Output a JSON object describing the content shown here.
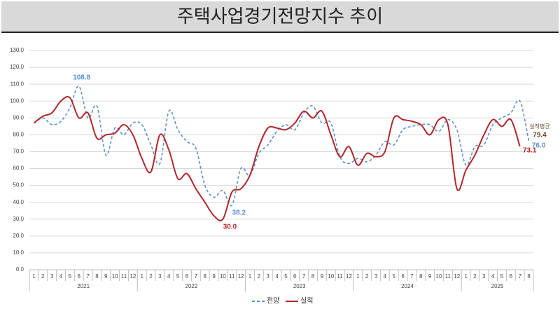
{
  "chart_data": {
    "type": "line",
    "title": "주택사업경기전망지수 추이",
    "categories": [
      "1",
      "2",
      "3",
      "4",
      "5",
      "6",
      "7",
      "8",
      "9",
      "10",
      "11",
      "12",
      "1",
      "2",
      "3",
      "4",
      "5",
      "6",
      "7",
      "8",
      "9",
      "10",
      "11",
      "12",
      "1",
      "2",
      "3",
      "4",
      "5",
      "6",
      "7",
      "8",
      "9",
      "10",
      "11",
      "12",
      "1",
      "2",
      "3",
      "4",
      "5",
      "6",
      "7",
      "8",
      "9",
      "10",
      "11",
      "12",
      "1",
      "2",
      "3",
      "4",
      "5",
      "6",
      "7",
      "8"
    ],
    "x_groups": [
      "2021",
      "2022",
      "2023",
      "2024",
      "2025"
    ],
    "series": [
      {
        "name": "전망",
        "color": "#5b8fd6",
        "dash": true,
        "values": [
          87,
          90,
          86,
          88,
          96,
          108.8,
          90,
          97,
          68,
          84,
          80,
          87,
          86,
          74,
          63,
          94,
          83,
          76,
          72,
          50,
          43,
          47,
          38.2,
          60,
          56,
          69,
          74,
          82,
          86,
          83,
          93,
          97,
          87,
          87,
          67,
          63,
          66,
          64,
          68,
          76,
          74,
          83,
          85,
          86,
          86,
          82,
          89,
          83,
          62,
          73,
          74,
          86,
          90,
          93,
          100,
          76
        ],
        "value_labels": [
          null,
          null,
          null,
          null,
          null,
          "108.8",
          null,
          null,
          null,
          null,
          null,
          null,
          null,
          null,
          null,
          null,
          null,
          null,
          null,
          null,
          null,
          null,
          "38.2",
          null,
          null,
          null,
          null,
          null,
          null,
          null,
          null,
          null,
          null,
          null,
          null,
          null,
          null,
          null,
          null,
          null,
          null,
          null,
          null,
          null,
          null,
          null,
          null,
          null,
          null,
          null,
          null,
          null,
          null,
          null,
          null,
          "76.0"
        ]
      },
      {
        "name": "실적",
        "color": "#b3262b",
        "dash": false,
        "values": [
          87,
          91,
          93,
          100,
          102,
          90,
          93,
          78,
          80,
          81,
          86,
          80,
          66,
          58,
          80,
          71,
          54,
          57,
          48,
          40,
          32,
          30,
          46,
          48,
          56,
          73,
          84,
          84,
          83,
          87,
          94,
          90,
          94,
          80,
          67,
          73,
          62,
          69,
          67,
          70,
          90,
          89,
          88,
          86,
          80,
          89,
          86,
          48,
          59,
          68,
          80,
          89,
          85,
          89,
          73.1,
          null
        ],
        "value_labels": [
          null,
          null,
          null,
          null,
          null,
          null,
          null,
          null,
          null,
          null,
          null,
          null,
          null,
          null,
          null,
          null,
          null,
          null,
          null,
          null,
          null,
          "30.0",
          null,
          null,
          null,
          null,
          null,
          null,
          null,
          null,
          null,
          null,
          null,
          null,
          null,
          null,
          null,
          null,
          null,
          null,
          null,
          null,
          null,
          null,
          null,
          null,
          null,
          null,
          null,
          null,
          null,
          null,
          null,
          null,
          "73.1",
          null
        ]
      }
    ],
    "annotation": {
      "text": "실적평균",
      "value": 79.4
    },
    "ylim": [
      0,
      130
    ],
    "yticks": [
      {
        "value": 0,
        "label": "0.0"
      },
      {
        "value": 10,
        "label": "10.0"
      },
      {
        "value": 20,
        "label": "20.0"
      },
      {
        "value": 30,
        "label": "30.0"
      },
      {
        "value": 40,
        "label": "40.0"
      },
      {
        "value": 50,
        "label": "50.0"
      },
      {
        "value": 60,
        "label": "60.0"
      },
      {
        "value": 70,
        "label": "70.0"
      },
      {
        "value": 80,
        "label": "80.0"
      },
      {
        "value": 90,
        "label": "90.0"
      },
      {
        "value": 100,
        "label": "100.0"
      },
      {
        "value": 110,
        "label": "110.0"
      },
      {
        "value": 120,
        "label": "120.0"
      },
      {
        "value": 130,
        "label": "130.0"
      }
    ],
    "grid": true
  }
}
